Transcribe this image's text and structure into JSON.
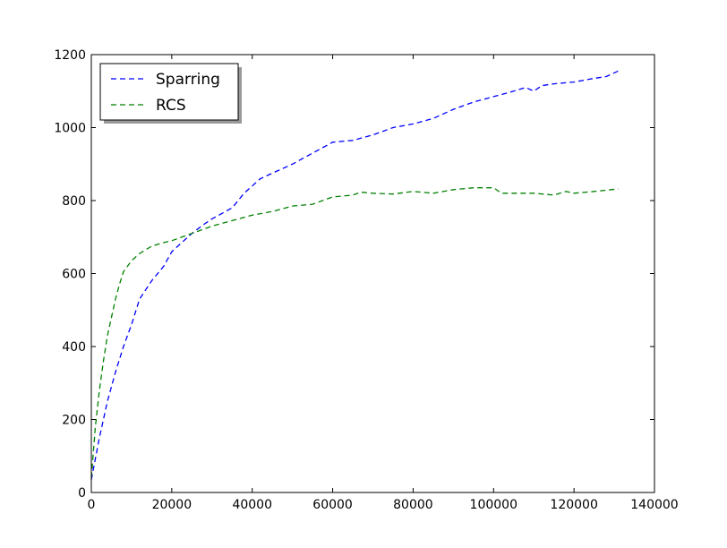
{
  "chart_data": {
    "type": "line",
    "title": "",
    "xlabel": "",
    "ylabel": "",
    "xlim": [
      0,
      140000
    ],
    "ylim": [
      0,
      1200
    ],
    "x_ticks": [
      0,
      20000,
      40000,
      60000,
      80000,
      100000,
      120000,
      140000
    ],
    "y_ticks": [
      0,
      200,
      400,
      600,
      800,
      1000,
      1200
    ],
    "x_tick_labels": [
      "0",
      "20000",
      "40000",
      "60000",
      "80000",
      "100000",
      "120000",
      "140000"
    ],
    "y_tick_labels": [
      "0",
      "200",
      "400",
      "600",
      "800",
      "1000",
      "1200"
    ],
    "grid": false,
    "legend_position": "top-left",
    "series": [
      {
        "name": "Sparring",
        "color": "#0000ff",
        "line_style": "dashed",
        "points": [
          [
            0,
            35
          ],
          [
            2000,
            150
          ],
          [
            4000,
            250
          ],
          [
            6000,
            330
          ],
          [
            8000,
            400
          ],
          [
            10000,
            460
          ],
          [
            12000,
            530
          ],
          [
            15000,
            580
          ],
          [
            18000,
            620
          ],
          [
            20000,
            660
          ],
          [
            25000,
            710
          ],
          [
            28000,
            735
          ],
          [
            30000,
            750
          ],
          [
            35000,
            780
          ],
          [
            38000,
            820
          ],
          [
            40000,
            840
          ],
          [
            42000,
            860
          ],
          [
            45000,
            875
          ],
          [
            50000,
            900
          ],
          [
            55000,
            930
          ],
          [
            60000,
            960
          ],
          [
            65000,
            965
          ],
          [
            70000,
            980
          ],
          [
            75000,
            1000
          ],
          [
            80000,
            1010
          ],
          [
            85000,
            1025
          ],
          [
            90000,
            1050
          ],
          [
            95000,
            1070
          ],
          [
            100000,
            1085
          ],
          [
            105000,
            1100
          ],
          [
            108000,
            1110
          ],
          [
            110000,
            1100
          ],
          [
            112000,
            1115
          ],
          [
            115000,
            1120
          ],
          [
            120000,
            1125
          ],
          [
            125000,
            1135
          ],
          [
            128000,
            1140
          ],
          [
            131000,
            1155
          ]
        ]
      },
      {
        "name": "RCS",
        "color": "#008000",
        "line_style": "dashed",
        "points": [
          [
            0,
            40
          ],
          [
            1000,
            180
          ],
          [
            2000,
            280
          ],
          [
            3000,
            360
          ],
          [
            4000,
            430
          ],
          [
            5000,
            480
          ],
          [
            6000,
            530
          ],
          [
            7000,
            570
          ],
          [
            8000,
            605
          ],
          [
            10000,
            635
          ],
          [
            12000,
            655
          ],
          [
            15000,
            675
          ],
          [
            18000,
            685
          ],
          [
            20000,
            690
          ],
          [
            25000,
            710
          ],
          [
            30000,
            730
          ],
          [
            35000,
            745
          ],
          [
            40000,
            760
          ],
          [
            45000,
            770
          ],
          [
            50000,
            785
          ],
          [
            55000,
            790
          ],
          [
            60000,
            810
          ],
          [
            65000,
            815
          ],
          [
            67000,
            823
          ],
          [
            70000,
            820
          ],
          [
            75000,
            818
          ],
          [
            80000,
            825
          ],
          [
            85000,
            820
          ],
          [
            90000,
            830
          ],
          [
            95000,
            835
          ],
          [
            100000,
            835
          ],
          [
            102000,
            820
          ],
          [
            105000,
            820
          ],
          [
            110000,
            820
          ],
          [
            115000,
            815
          ],
          [
            118000,
            825
          ],
          [
            120000,
            820
          ],
          [
            125000,
            825
          ],
          [
            131000,
            832
          ]
        ]
      }
    ]
  }
}
